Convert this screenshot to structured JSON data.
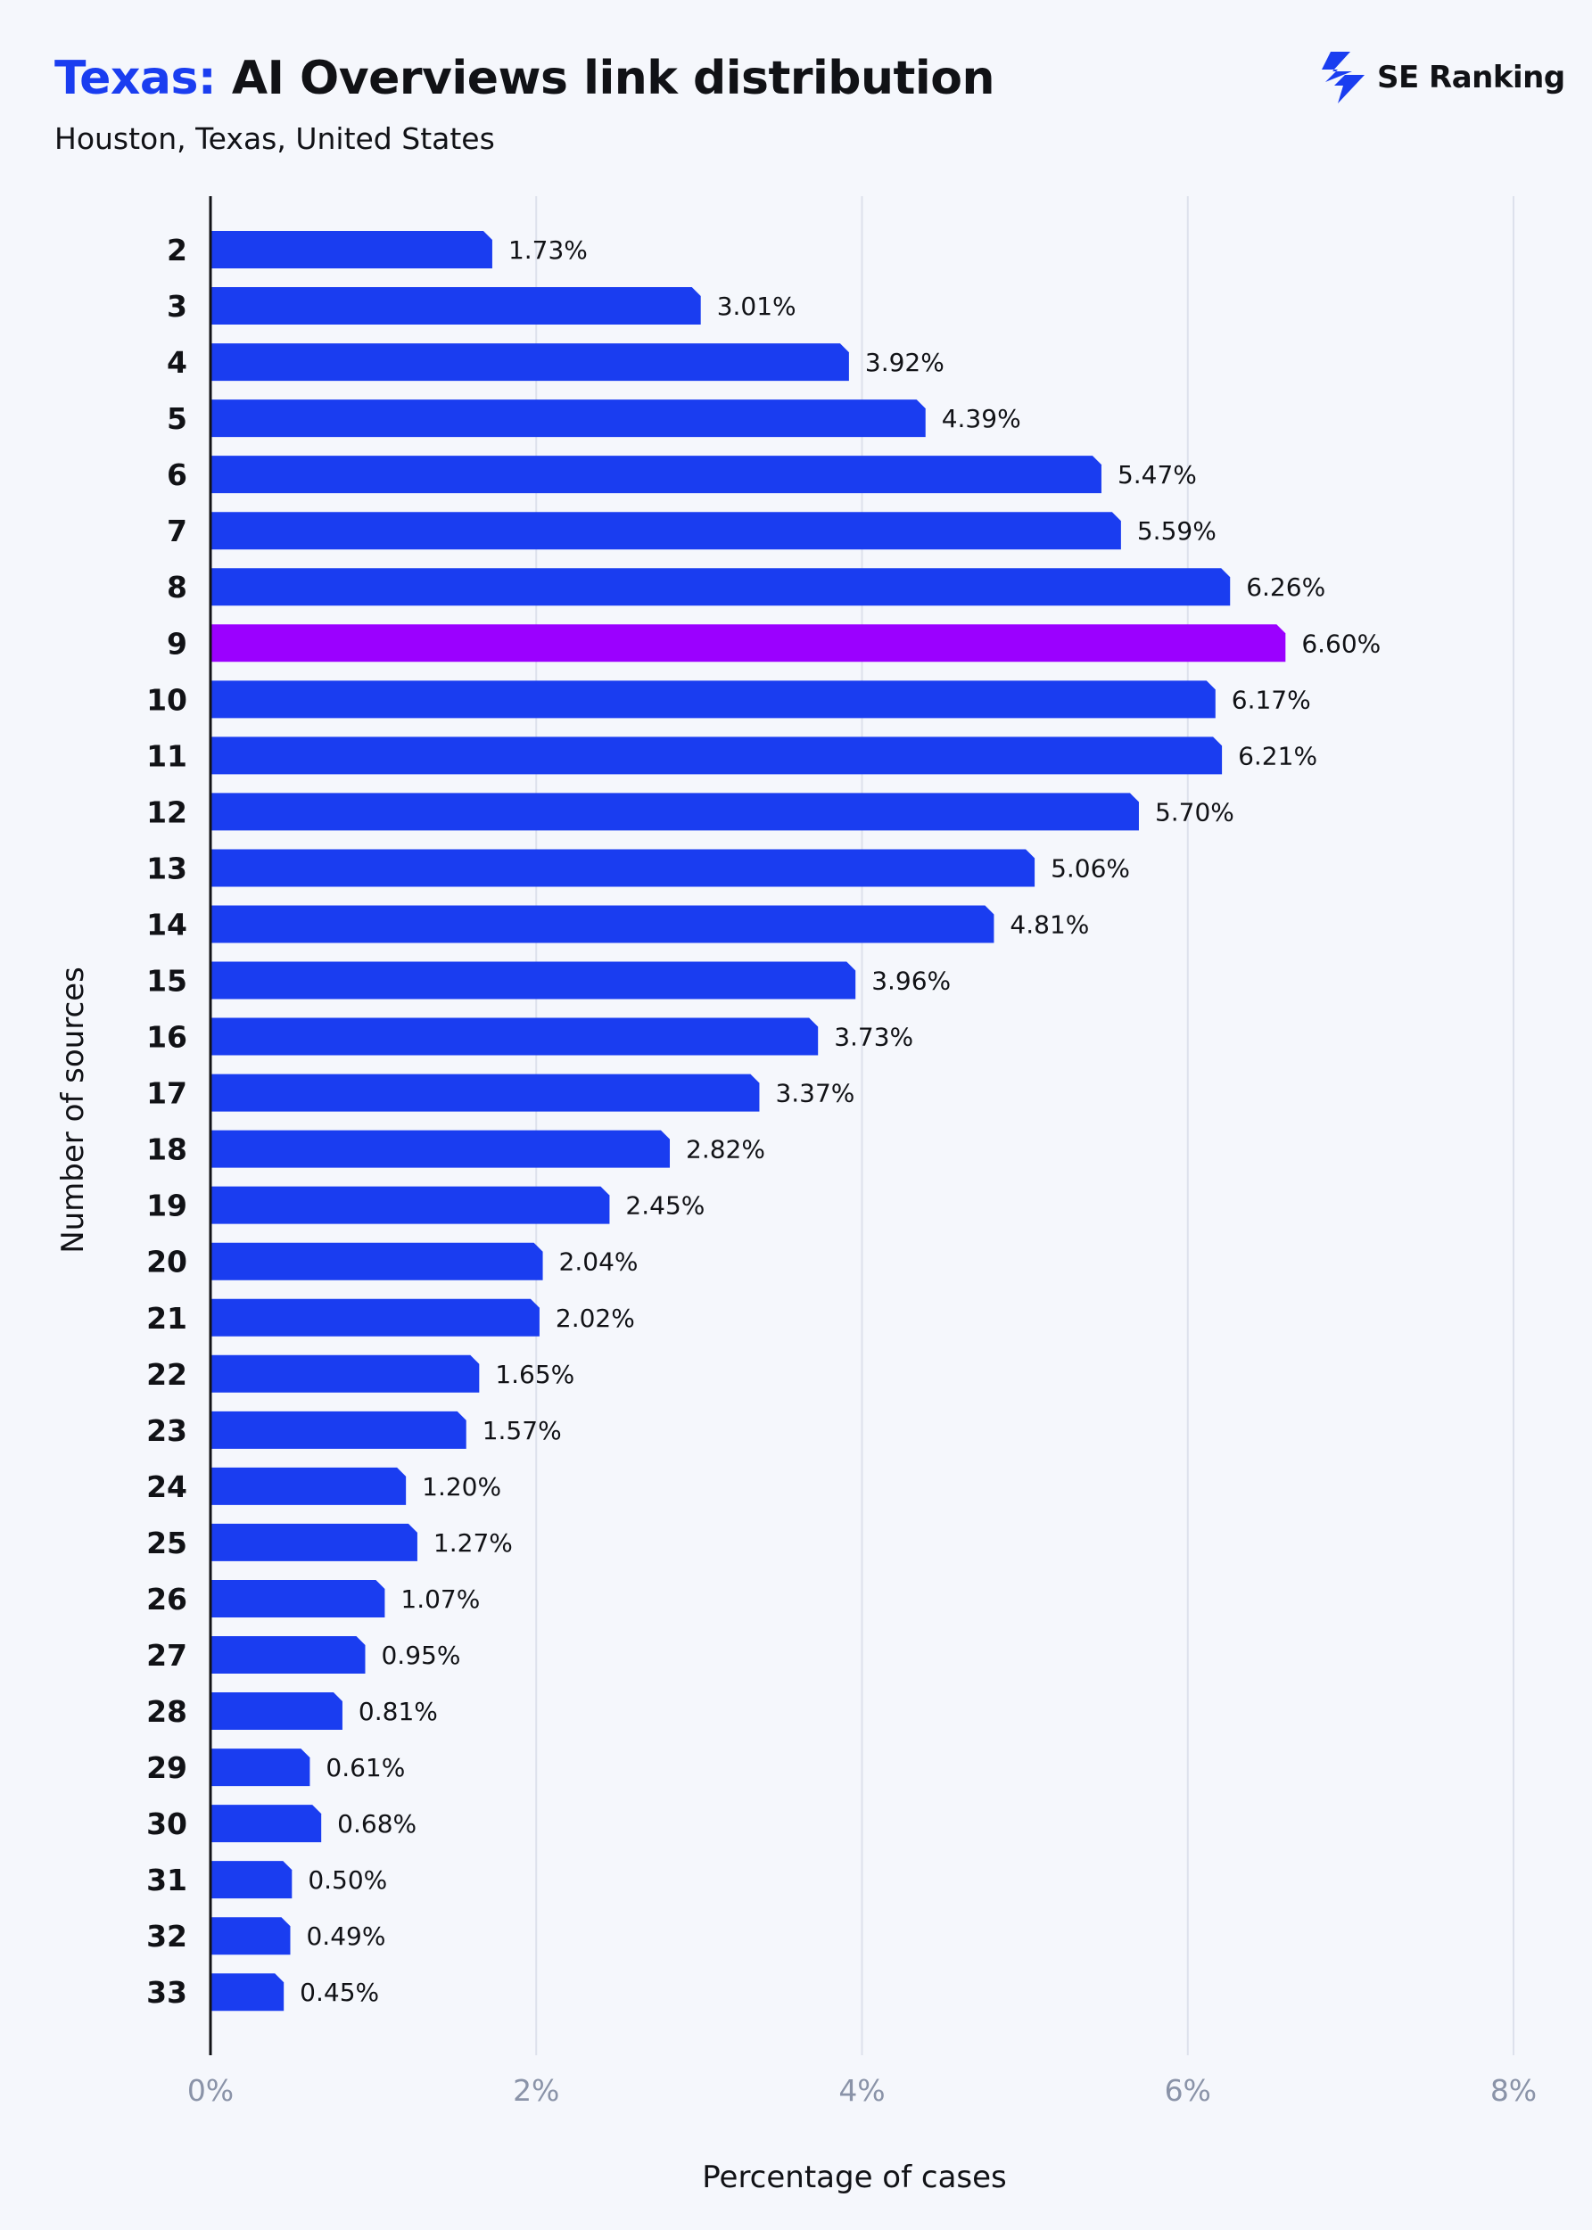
{
  "title": {
    "accent": "Texas:",
    "main": " AI Overviews link distribution"
  },
  "subtitle": "Houston, Texas, United States",
  "brand": {
    "name": "SE Ranking",
    "logo_icon": "se-ranking-logo-icon"
  },
  "colors": {
    "bar": "#1a3df0",
    "highlight": "#9b00ff",
    "accent": "#1a3df0",
    "grid": "#dde1ec",
    "axis": "#111216",
    "tick": "#8a93a8",
    "background": "#f5f7fc"
  },
  "chart_data": {
    "type": "bar",
    "orientation": "horizontal",
    "title": "Texas: AI Overviews link distribution",
    "subtitle": "Houston, Texas, United States",
    "xlabel": "Percentage of cases",
    "ylabel": "Number of sources",
    "xlim": [
      0,
      8
    ],
    "xticks": [
      "0%",
      "2%",
      "4%",
      "6%",
      "8%"
    ],
    "grid": true,
    "highlight_category": "9",
    "categories": [
      "2",
      "3",
      "4",
      "5",
      "6",
      "7",
      "8",
      "9",
      "10",
      "11",
      "12",
      "13",
      "14",
      "15",
      "16",
      "17",
      "18",
      "19",
      "20",
      "21",
      "22",
      "23",
      "24",
      "25",
      "26",
      "27",
      "28",
      "29",
      "30",
      "31",
      "32",
      "33"
    ],
    "values": [
      1.73,
      3.01,
      3.92,
      4.39,
      5.47,
      5.59,
      6.26,
      6.6,
      6.17,
      6.21,
      5.7,
      5.06,
      4.81,
      3.96,
      3.73,
      3.37,
      2.82,
      2.45,
      2.04,
      2.02,
      1.65,
      1.57,
      1.2,
      1.27,
      1.07,
      0.95,
      0.81,
      0.61,
      0.68,
      0.5,
      0.49,
      0.45
    ],
    "labels": [
      "1.73%",
      "3.01%",
      "3.92%",
      "4.39%",
      "5.47%",
      "5.59%",
      "6.26%",
      "6.60%",
      "6.17%",
      "6.21%",
      "5.70%",
      "5.06%",
      "4.81%",
      "3.96%",
      "3.73%",
      "3.37%",
      "2.82%",
      "2.45%",
      "2.04%",
      "2.02%",
      "1.65%",
      "1.57%",
      "1.20%",
      "1.27%",
      "1.07%",
      "0.95%",
      "0.81%",
      "0.61%",
      "0.68%",
      "0.50%",
      "0.49%",
      "0.45%"
    ]
  }
}
